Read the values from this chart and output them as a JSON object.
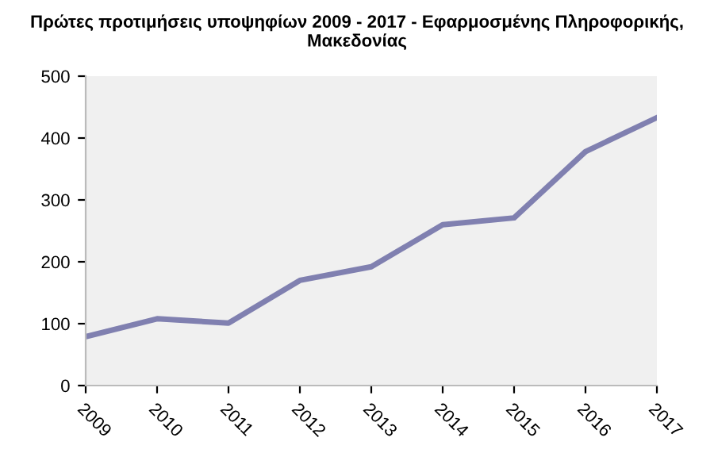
{
  "chart_data": {
    "type": "line",
    "title": "Πρώτες προτιμήσεις υποψηφίων 2009 - 2017 - Εφαρμοσμένης Πληροφορικής, Μακεδονίας",
    "categories": [
      "2009",
      "2010",
      "2011",
      "2012",
      "2013",
      "2014",
      "2015",
      "2016",
      "2017"
    ],
    "series": [
      {
        "color": "#8080b0",
        "values": [
          79,
          108,
          101,
          170,
          192,
          260,
          271,
          378,
          433
        ]
      }
    ],
    "ylim": [
      0,
      500
    ],
    "yticks": [
      0,
      100,
      200,
      300,
      400,
      500
    ],
    "grid": false,
    "legend": false,
    "marker": "none",
    "line_style": "solid"
  }
}
